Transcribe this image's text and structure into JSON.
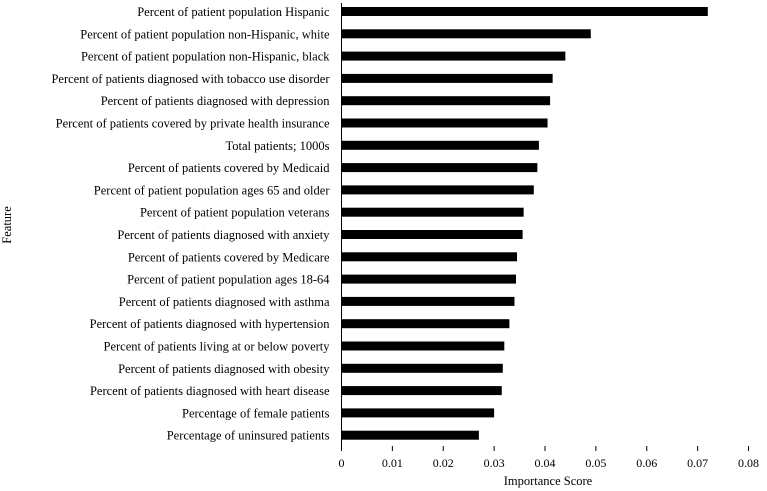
{
  "chart_data": {
    "type": "bar",
    "orientation": "horizontal",
    "xlabel": "Importance Score",
    "ylabel": "Feature",
    "xlim": [
      0,
      0.08
    ],
    "x_ticks": [
      "0",
      "0.01",
      "0.02",
      "0.03",
      "0.04",
      "0.05",
      "0.06",
      "0.07",
      "0.08"
    ],
    "grid": false,
    "legend": "none",
    "bar_color": "#000000",
    "categories": [
      "Percent of patient population Hispanic",
      "Percent of patient population non-Hispanic, white",
      "Percent of patient population non-Hispanic, black",
      "Percent of patients diagnosed with tobacco use disorder",
      "Percent of patients diagnosed with depression",
      "Percent of patients covered by private health insurance",
      "Total patients; 1000s",
      "Percent of patients covered by Medicaid",
      "Percent of patient population ages 65 and older",
      "Percent of patient population veterans",
      "Percent of patients diagnosed with anxiety",
      "Percent of patients covered by Medicare",
      "Percent of patient population ages 18-64",
      "Percent of patients diagnosed with asthma",
      "Percent of patients diagnosed with hypertension",
      "Percent of patients living at or below poverty",
      "Percent of patients diagnosed with obesity",
      "Percent of patients diagnosed with heart disease",
      "Percentage of female patients",
      "Percentage of uninsured patients"
    ],
    "values": [
      0.072,
      0.049,
      0.044,
      0.0415,
      0.041,
      0.0405,
      0.0388,
      0.0385,
      0.0378,
      0.0358,
      0.0356,
      0.0345,
      0.0343,
      0.034,
      0.033,
      0.032,
      0.0317,
      0.0315,
      0.03,
      0.027
    ]
  }
}
